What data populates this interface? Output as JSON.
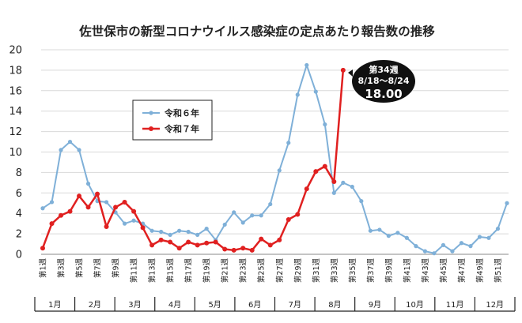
{
  "chart_data": {
    "type": "line",
    "title": "佐世保市の新型コロナウイルス感染症の定点あたり報告数の推移",
    "ylim": [
      0,
      20
    ],
    "yticks": [
      0,
      2,
      4,
      6,
      8,
      10,
      12,
      14,
      16,
      18,
      20
    ],
    "grid": true,
    "legend_position": "top-left-inside",
    "x_tick_labels": [
      "第1週",
      "第3週",
      "第5週",
      "第7週",
      "第9週",
      "第11週",
      "第13週",
      "第15週",
      "第17週",
      "第19週",
      "第21週",
      "第23週",
      "第25週",
      "第27週",
      "第29週",
      "第31週",
      "第33週",
      "第35週",
      "第37週",
      "第39週",
      "第41週",
      "第43週",
      "第45週",
      "第47週",
      "第49週",
      "第51週"
    ],
    "months": [
      "1月",
      "2月",
      "3月",
      "4月",
      "5月",
      "6月",
      "7月",
      "8月",
      "9月",
      "10月",
      "11月",
      "12月"
    ],
    "series": [
      {
        "name": "令和６年",
        "color": "#7fb0d8",
        "values": [
          4.5,
          5.1,
          10.2,
          11.0,
          10.2,
          6.9,
          5.2,
          5.1,
          4.1,
          3.0,
          3.3,
          3.0,
          2.3,
          2.2,
          1.9,
          2.3,
          2.2,
          1.9,
          2.5,
          1.4,
          2.9,
          4.1,
          3.1,
          3.8,
          3.8,
          4.9,
          8.2,
          10.9,
          15.6,
          18.5,
          15.9,
          12.7,
          6.0,
          7.0,
          6.6,
          5.2,
          2.3,
          2.4,
          1.8,
          2.1,
          1.6,
          0.8,
          0.3,
          0.1,
          0.9,
          0.3,
          1.1,
          0.8,
          1.7,
          1.6,
          2.5,
          5.0
        ]
      },
      {
        "name": "令和７年",
        "color": "#e02020",
        "values": [
          0.6,
          3.0,
          3.8,
          4.2,
          5.7,
          4.6,
          5.9,
          2.7,
          4.6,
          5.1,
          4.2,
          2.6,
          0.9,
          1.4,
          1.2,
          0.6,
          1.2,
          0.9,
          1.1,
          1.2,
          0.5,
          0.4,
          0.6,
          0.4,
          1.5,
          0.9,
          1.4,
          3.4,
          3.9,
          6.4,
          8.1,
          8.6,
          7.1,
          18.0
        ]
      }
    ],
    "callout": {
      "week_label": "第34週",
      "date_range": "8/18～8/24",
      "value": "18.00"
    }
  }
}
